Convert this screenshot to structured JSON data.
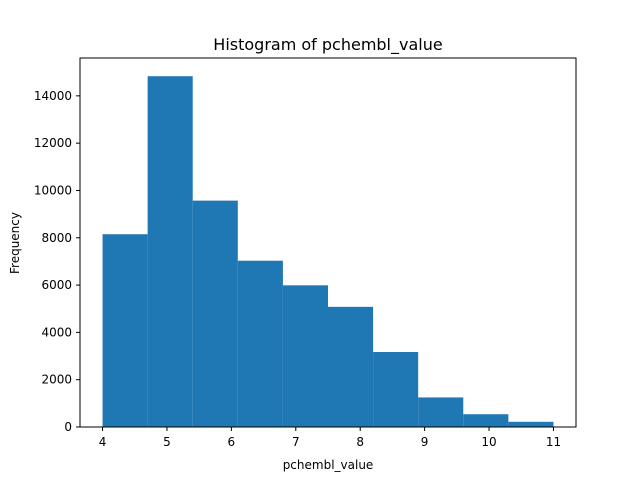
{
  "chart_data": {
    "type": "bar",
    "title": "Histogram of pchembl_value",
    "xlabel": "pchembl_value",
    "ylabel": "Frequency",
    "bins": [
      {
        "x0": 4.0,
        "x1": 4.7,
        "count": 8150
      },
      {
        "x0": 4.7,
        "x1": 5.4,
        "count": 14830
      },
      {
        "x0": 5.4,
        "x1": 6.1,
        "count": 9570
      },
      {
        "x0": 6.1,
        "x1": 6.8,
        "count": 7030
      },
      {
        "x0": 6.8,
        "x1": 7.5,
        "count": 5990
      },
      {
        "x0": 7.5,
        "x1": 8.2,
        "count": 5080
      },
      {
        "x0": 8.2,
        "x1": 8.9,
        "count": 3170
      },
      {
        "x0": 8.9,
        "x1": 9.6,
        "count": 1250
      },
      {
        "x0": 9.6,
        "x1": 10.3,
        "count": 540
      },
      {
        "x0": 10.3,
        "x1": 11.0,
        "count": 220
      }
    ],
    "xlim": [
      3.65,
      11.35
    ],
    "ylim": [
      0,
      15600
    ],
    "xticks": [
      4,
      5,
      6,
      7,
      8,
      9,
      10,
      11
    ],
    "yticks": [
      0,
      2000,
      4000,
      6000,
      8000,
      10000,
      12000,
      14000
    ],
    "bar_color": "#1f77b4",
    "grid": false,
    "legend": false
  }
}
